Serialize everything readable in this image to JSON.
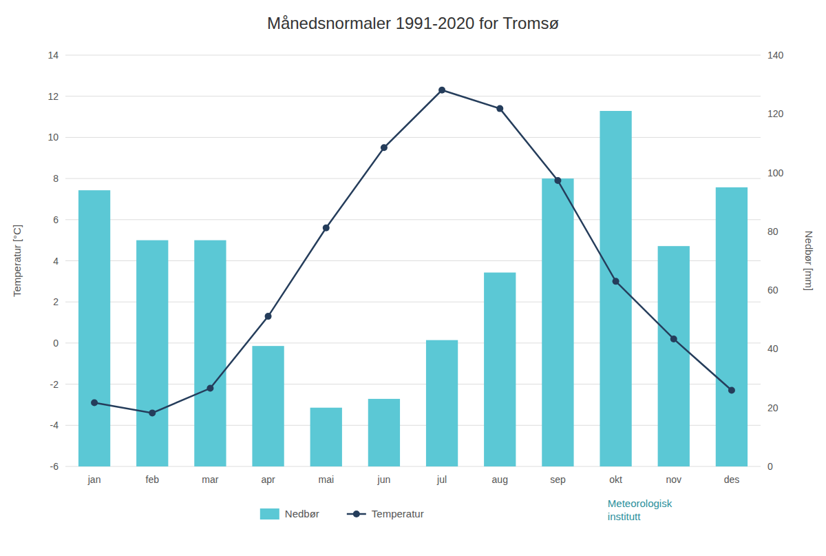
{
  "chart_data": {
    "type": "bar",
    "title": "Månedsnormaler 1991-2020 for Tromsø",
    "categories": [
      "jan",
      "feb",
      "mar",
      "apr",
      "mai",
      "jun",
      "jul",
      "aug",
      "sep",
      "okt",
      "nov",
      "des"
    ],
    "series": [
      {
        "name": "Nedbør",
        "type": "bar",
        "axis": "y2",
        "color": "#5bc8d5",
        "values": [
          94.0,
          77.0,
          77.0,
          41.0,
          20.0,
          23.0,
          43.0,
          66.0,
          98.0,
          121.0,
          75.0,
          95.0
        ]
      },
      {
        "name": "Temperatur",
        "type": "line",
        "color": "#253d5b",
        "marker": "circle",
        "values": [
          -2.9,
          -3.4,
          -2.2,
          1.3,
          5.6,
          9.5,
          12.3,
          11.4,
          7.9,
          3.0,
          0.2,
          -2.3
        ]
      }
    ],
    "ylabel": "Temperatur [°C]",
    "y2label": "Nedbør [mm]",
    "ylim": [
      -6,
      14
    ],
    "yticks": [
      -6,
      -4,
      -2,
      0,
      2,
      4,
      6,
      8,
      10,
      12,
      14
    ],
    "y2lim": [
      0,
      140
    ],
    "y2ticks": [
      0,
      20,
      40,
      60,
      80,
      100,
      120,
      140
    ],
    "grid": true,
    "legend": "bottom",
    "annotations": [
      "Meteorologisk\ninstitutt"
    ]
  }
}
